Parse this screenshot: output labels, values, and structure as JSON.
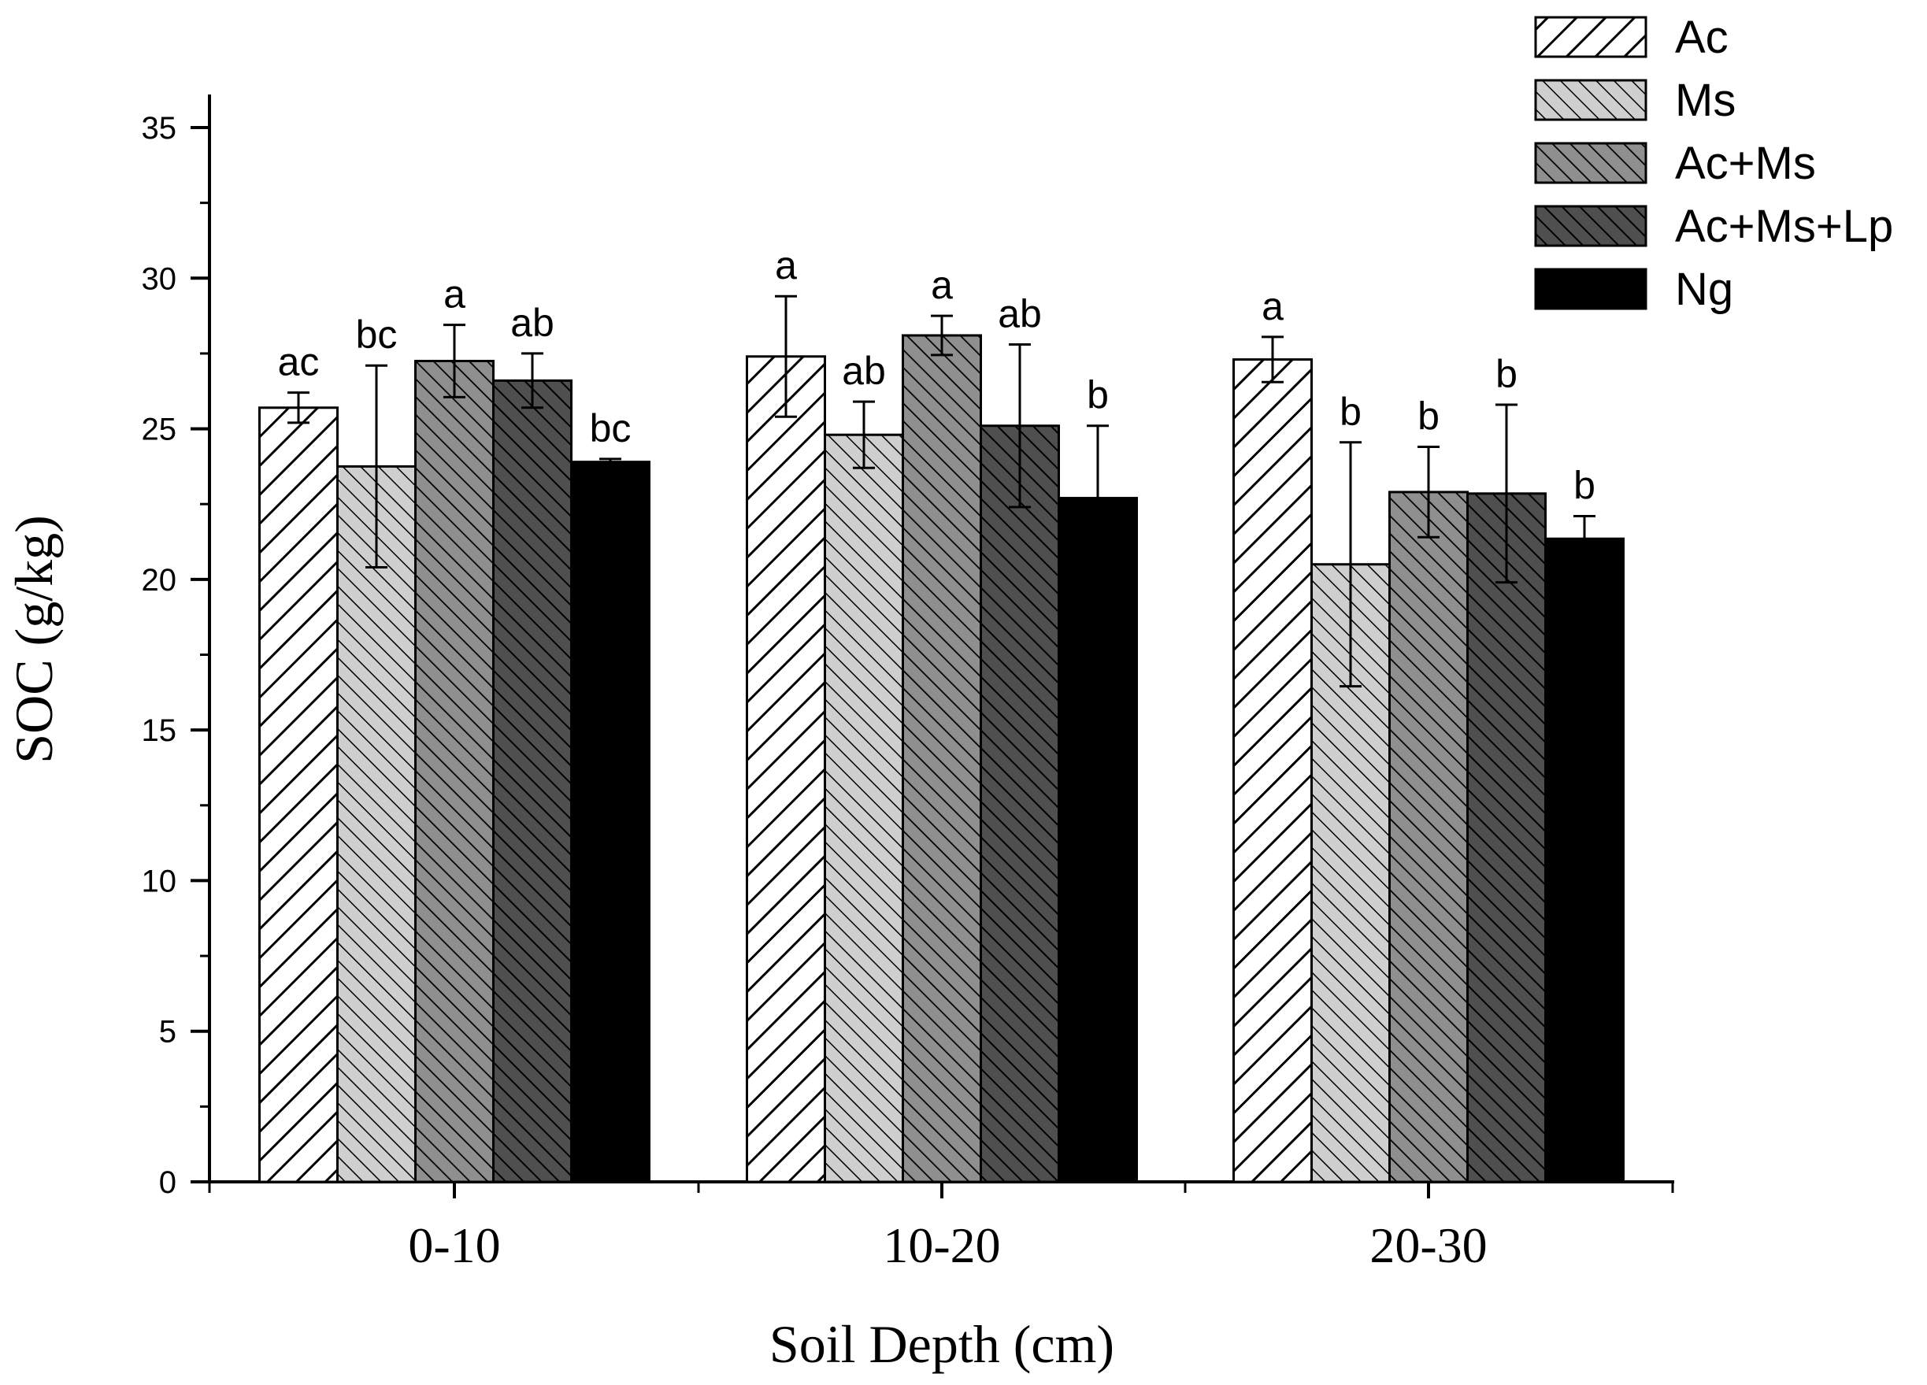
{
  "chart_data": {
    "type": "bar",
    "title": "",
    "xlabel": "Soil Depth (cm)",
    "ylabel": "SOC (g/kg)",
    "ylim": [
      0,
      35
    ],
    "yticks": [
      "0",
      "5",
      "10",
      "15",
      "20",
      "25",
      "30",
      "35"
    ],
    "categories": [
      "0-10",
      "10-20",
      "20-30"
    ],
    "grid": false,
    "legend_position": "top-right",
    "series": [
      {
        "name": "Ac",
        "pattern": "diag-right-sparse",
        "values": [
          25.7,
          27.4,
          27.3
        ],
        "errors": [
          0.5,
          2.0,
          0.75
        ],
        "letters": [
          "ac",
          "a",
          "a"
        ]
      },
      {
        "name": "Ms",
        "pattern": "diag-left-light",
        "values": [
          23.75,
          24.8,
          20.5
        ],
        "errors": [
          3.35,
          1.1,
          4.05
        ],
        "letters": [
          "bc",
          "ab",
          "b"
        ]
      },
      {
        "name": "Ac+Ms",
        "pattern": "diag-left-mid",
        "values": [
          27.25,
          28.1,
          22.9
        ],
        "errors": [
          1.2,
          0.65,
          1.5
        ],
        "letters": [
          "a",
          "a",
          "b"
        ]
      },
      {
        "name": "Ac+Ms+Lp",
        "pattern": "diag-left-dark",
        "values": [
          26.6,
          25.1,
          22.85
        ],
        "errors": [
          0.9,
          2.7,
          2.95
        ],
        "letters": [
          "ab",
          "ab",
          "b"
        ]
      },
      {
        "name": "Ng",
        "pattern": "solid-black",
        "values": [
          23.9,
          22.7,
          21.35
        ],
        "errors": [
          0.1,
          2.4,
          0.75
        ],
        "letters": [
          "bc",
          "b",
          "b"
        ]
      }
    ]
  }
}
